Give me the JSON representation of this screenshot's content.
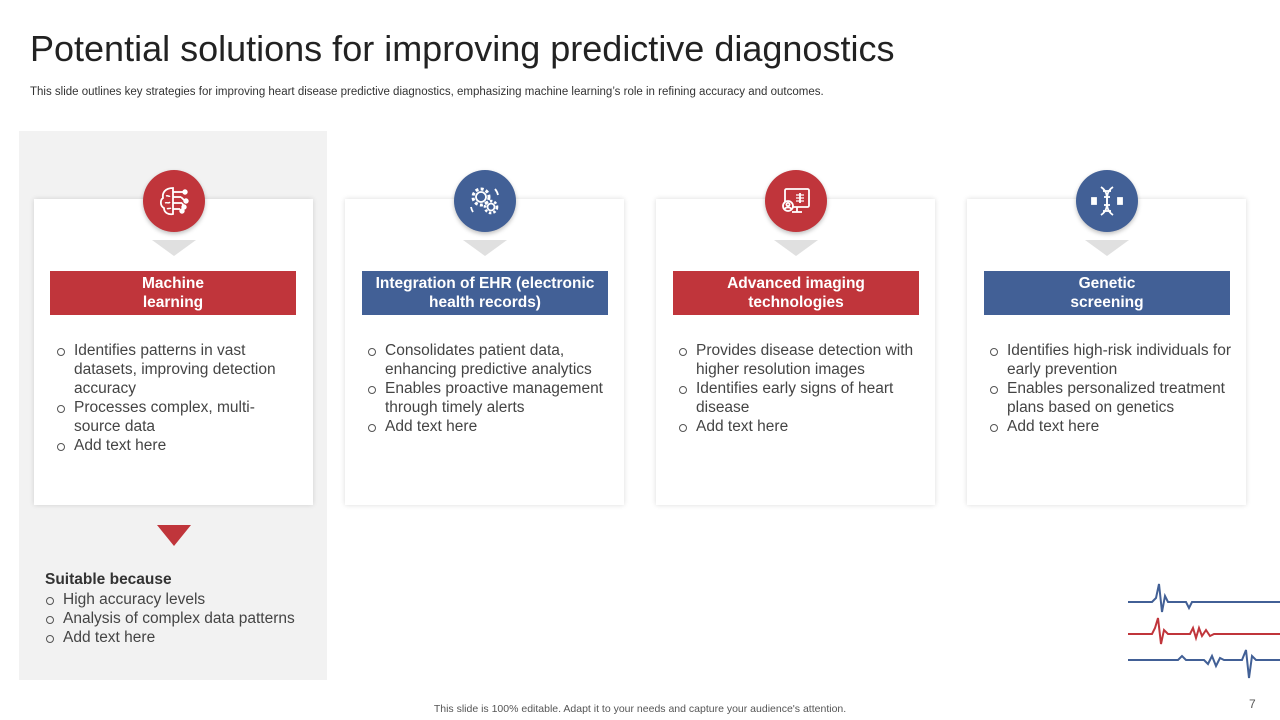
{
  "slide": {
    "title": "Potential solutions for improving predictive diagnostics",
    "subtitle": "This slide outlines key strategies for improving heart disease predictive diagnostics, emphasizing machine learning’s role in refining accuracy and outcomes.",
    "footer": "This slide is 100% editable. Adapt it to your needs and capture your audience's attention.",
    "page_number": "7"
  },
  "colors": {
    "red": "#c0353b",
    "blue": "#426096",
    "panel": "#f2f2f2"
  },
  "solutions": [
    {
      "icon": "brain-circuit-icon",
      "title_line1": "Machine",
      "title_line2": "learning",
      "bullets": [
        "Identifies patterns in vast datasets, improving detection accuracy",
        "Processes complex, multi-source data",
        "Add text here"
      ]
    },
    {
      "icon": "gears-icon",
      "title_line1": "Integration of EHR (electronic",
      "title_line2": "health records)",
      "bullets": [
        "Consolidates patient data, enhancing predictive analytics",
        "Enables proactive management through timely alerts",
        "Add text here"
      ]
    },
    {
      "icon": "imaging-monitor-icon",
      "title_line1": "Advanced imaging",
      "title_line2": "technologies",
      "bullets": [
        "Provides disease detection with higher resolution images",
        "Identifies early signs of heart disease",
        "Add text here"
      ]
    },
    {
      "icon": "dna-icon",
      "title_line1": "Genetic",
      "title_line2": "screening",
      "bullets": [
        "Identifies high-risk individuals for early prevention",
        "Enables personalized treatment plans based on genetics",
        "Add text here"
      ]
    }
  ],
  "suitable": {
    "heading": "Suitable because",
    "items": [
      "High accuracy levels",
      "Analysis of complex data patterns",
      "Add text here"
    ]
  },
  "decoration": {
    "icon": "ecg-lines-icon"
  }
}
